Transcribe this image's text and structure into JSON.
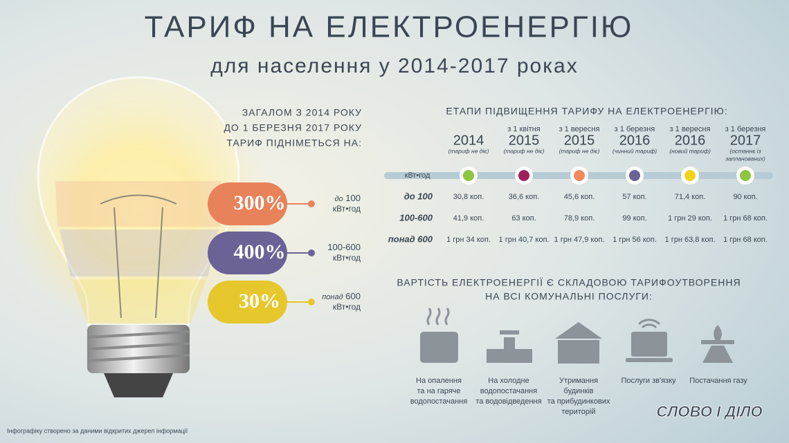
{
  "header": {
    "title": "ТАРИФ НА ЕЛЕКТРОЕНЕРГІЮ",
    "subtitle": "для населення у 2014-2017 роках"
  },
  "intro": {
    "lines": [
      "ЗАГАЛОМ З 2014 РОКУ",
      "ДО 1 БЕРЕЗНЯ 2017 РОКУ",
      "ТАРИФ ПІДНІМЕТЬСЯ НА:"
    ]
  },
  "increases": [
    {
      "value": "300%",
      "prefix": "до",
      "amount": "100",
      "unit": "кВт•год",
      "color": "#e8825a"
    },
    {
      "value": "400%",
      "amount": "100-600",
      "unit": "кВт•год",
      "color": "#6b6296"
    },
    {
      "value": "30%",
      "prefix": "понад",
      "amount": "600",
      "unit": "кВт•год",
      "color": "#e6c72c"
    }
  ],
  "stages": {
    "title": "ЕТАПИ ПІДВИЩЕННЯ ТАРИФУ НА ЕЛЕКТРОЕНЕРГІЮ:",
    "unit": "кВт•год",
    "columns": [
      {
        "year": "2014",
        "note": [
          "(тариф не діє)"
        ],
        "color": "#8cc63f"
      },
      {
        "date": "з 1 квітня",
        "year": "2015",
        "note": [
          "(тариф не діє)"
        ],
        "color": "#a0205e"
      },
      {
        "date": "з 1 вересня",
        "year": "2015",
        "note": [
          "(тариф не діє)"
        ],
        "color": "#f08a5d"
      },
      {
        "date": "з 1 березня",
        "year": "2016",
        "note": [
          "(чинний тариф)"
        ],
        "color": "#6b6296"
      },
      {
        "date": "з 1 вересня",
        "year": "2016",
        "note": [
          "(новий тариф)"
        ],
        "color": "#f2d31b"
      },
      {
        "date": "з 1 березня",
        "year": "2017",
        "note": [
          "(останнє із",
          "запланованих)"
        ],
        "color": "#8cc63f"
      }
    ],
    "rows": [
      {
        "label": "до 100",
        "values": [
          "30,8 коп.",
          "36,6 коп.",
          "45,6 коп.",
          "57 коп.",
          "71,4 коп.",
          "90 коп."
        ]
      },
      {
        "label": "100-600",
        "values": [
          "41,9 коп.",
          "63 коп.",
          "78,9 коп.",
          "99 коп.",
          "1 грн 29 коп.",
          "1 грн 68 коп."
        ]
      },
      {
        "label": "понад 600",
        "values": [
          "1 грн 34 коп.",
          "1 грн 40,7 коп.",
          "1 грн 47,9 коп.",
          "1 грн 56 коп.",
          "1 грн 63,8 коп.",
          "1 грн 68 коп."
        ]
      }
    ]
  },
  "services": {
    "title": [
      "ВАРТІСТЬ ЕЛЕКТРОЕНЕРГІЇ Є СКЛАДОВОЮ ТАРИФОУТВОРЕННЯ",
      "НА ВСІ КОМУНАЛЬНІ ПОСЛУГИ:"
    ],
    "items": [
      {
        "label": [
          "На опалення",
          "та на гаряче",
          "водопостачання"
        ]
      },
      {
        "label": [
          "На холодне",
          "водопостачання",
          "та водовідведення"
        ]
      },
      {
        "label": [
          "Утримання",
          "будинків",
          "та прибудинкових",
          "територій"
        ]
      },
      {
        "label": [
          "Послуги зв'язку"
        ]
      },
      {
        "label": [
          "Постачання газу"
        ]
      }
    ]
  },
  "footer": {
    "note": "Інфографіку створено за даними відкритих джерел інформації",
    "logo": "СЛОВО І ДІЛО"
  }
}
